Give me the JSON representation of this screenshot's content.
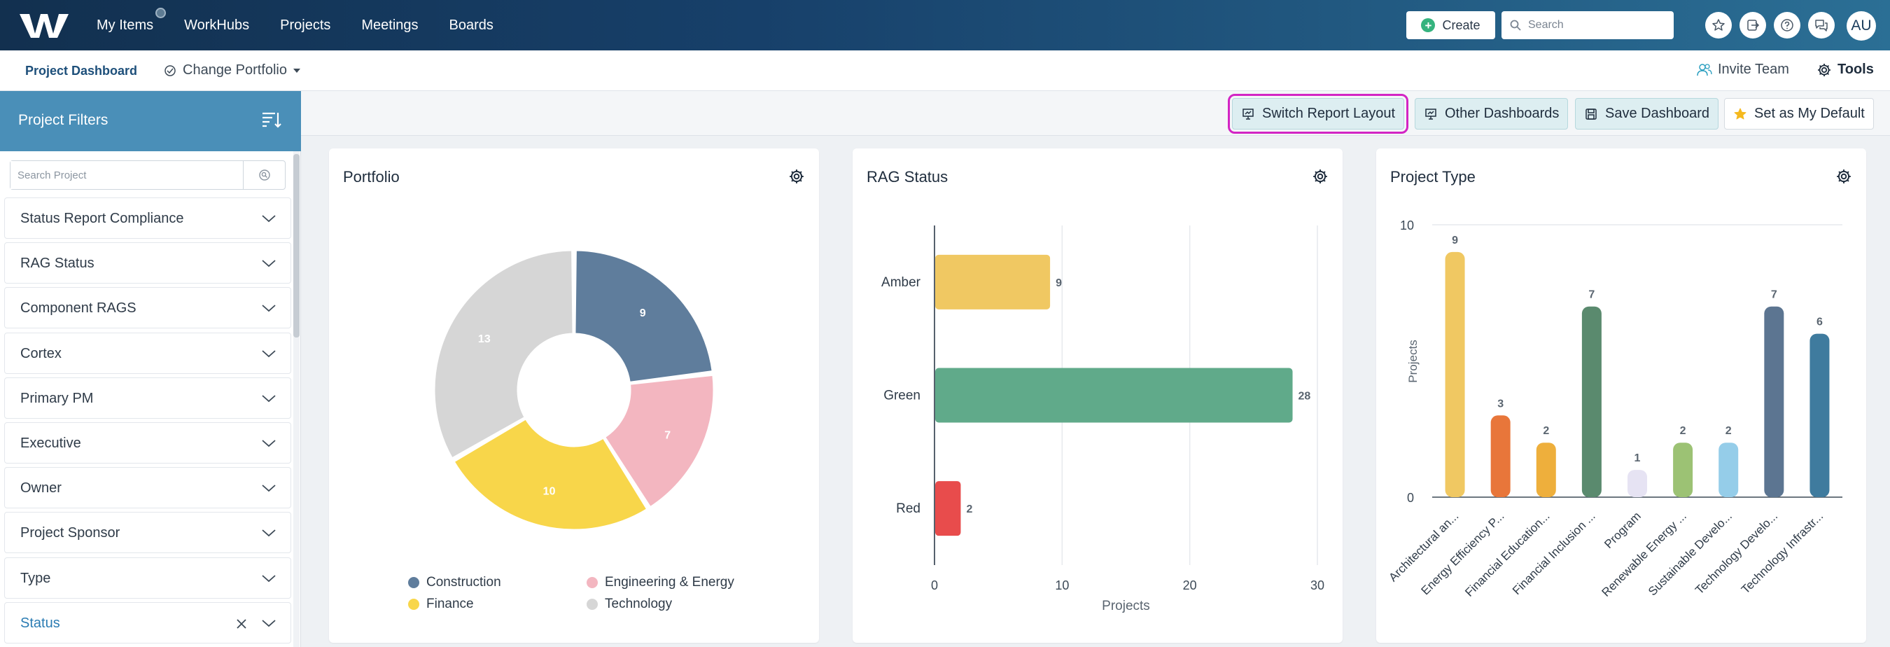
{
  "nav": {
    "items": [
      "My Items",
      "WorkHubs",
      "Projects",
      "Meetings",
      "Boards"
    ],
    "create_label": "Create",
    "search_placeholder": "Search",
    "avatar_initials": "AU"
  },
  "subheader": {
    "page_title": "Project Dashboard",
    "change_portfolio": "Change Portfolio",
    "invite_team": "Invite Team",
    "tools": "Tools"
  },
  "sidebar": {
    "title": "Project Filters",
    "search_placeholder": "Search Project",
    "filters": [
      "Status Report Compliance",
      "RAG Status",
      "Component RAGS",
      "Cortex",
      "Primary PM",
      "Executive",
      "Owner",
      "Project Sponsor",
      "Type",
      "Status"
    ],
    "active_filter": "Status"
  },
  "toolbar": {
    "switch_layout": "Switch Report Layout",
    "other_dashboards": "Other Dashboards",
    "save_dashboard": "Save Dashboard",
    "set_default": "Set as My Default"
  },
  "colors": {
    "accent": "#4a8fb8",
    "highlight": "#d324c4",
    "construction": "#5f7d9c",
    "engineering": "#f3b6c0",
    "finance": "#f8d64a",
    "technology": "#d6d6d6",
    "amber": "#f0c862",
    "green": "#60aa8a",
    "red": "#e84c4c"
  },
  "chart_data": [
    {
      "type": "pie",
      "title": "Portfolio",
      "donut": true,
      "categories": [
        "Construction",
        "Engineering & Energy",
        "Finance",
        "Technology"
      ],
      "values": [
        9,
        7,
        10,
        13
      ],
      "colors": [
        "#5f7d9c",
        "#f3b6c0",
        "#f8d64a",
        "#d6d6d6"
      ],
      "legend": "bottom"
    },
    {
      "type": "bar",
      "orientation": "horizontal",
      "title": "RAG Status",
      "categories": [
        "Amber",
        "Green",
        "Red"
      ],
      "values": [
        9,
        28,
        2
      ],
      "colors": [
        "#f0c862",
        "#60aa8a",
        "#e84c4c"
      ],
      "xlabel": "Projects",
      "xticks": [
        0,
        10,
        20,
        30
      ],
      "xlim": [
        0,
        30
      ],
      "grid": true
    },
    {
      "type": "bar",
      "title": "Project Type",
      "categories": [
        "Architectural an...",
        "Energy Efficiency P...",
        "Financial Education...",
        "Financial Inclusion ...",
        "Program",
        "Renewable Energy ...",
        "Sustainable Develo...",
        "Technology Develo...",
        "Technology Infrastr..."
      ],
      "values": [
        9,
        3,
        2,
        7,
        1,
        2,
        2,
        7,
        6
      ],
      "colors": [
        "#f0c862",
        "#e8763a",
        "#eeaf3c",
        "#5a8a6e",
        "#e6e3f3",
        "#9cc274",
        "#95cde9",
        "#5c7591",
        "#3f7b9e"
      ],
      "ylabel": "Projects",
      "yticks": [
        0,
        10
      ],
      "ylim": [
        0,
        10
      ]
    }
  ]
}
